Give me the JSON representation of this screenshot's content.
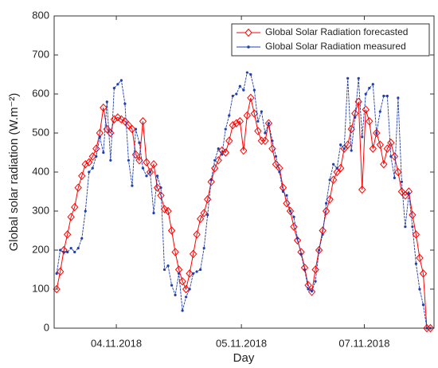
{
  "chart_data": {
    "type": "line",
    "xlabel": "Day",
    "ylabel": "Global solar radiation (W.m⁻²)",
    "x": [
      0,
      1,
      2,
      3,
      4,
      5,
      6,
      7,
      8,
      9,
      10,
      11,
      12,
      13,
      14,
      15,
      16,
      17,
      18,
      19,
      20,
      21,
      22,
      23,
      24,
      25,
      26,
      27,
      28,
      29,
      30,
      31,
      32,
      33,
      34,
      35,
      36,
      37,
      38,
      39,
      40,
      41,
      42,
      43,
      44,
      45,
      46,
      47,
      48,
      49,
      50,
      51,
      52,
      53,
      54,
      55,
      56,
      57,
      58,
      59,
      60,
      61,
      62,
      63,
      64,
      65,
      66,
      67,
      68,
      69,
      70,
      71,
      72,
      73,
      74,
      75,
      76,
      77,
      78,
      79,
      80,
      81,
      82,
      83,
      84,
      85,
      86,
      87,
      88,
      89,
      90,
      91,
      92,
      93,
      94,
      95,
      96,
      97,
      98,
      99,
      100,
      101,
      102,
      103,
      104
    ],
    "xlim": [
      -0.7,
      105
    ],
    "xticks": [
      {
        "value": 16.6,
        "label": "04.11.2018"
      },
      {
        "value": 51.4,
        "label": "05.11.2018"
      },
      {
        "value": 85.6,
        "label": "07.11.2018"
      }
    ],
    "ylim": [
      0,
      800
    ],
    "yticks": [
      0,
      100,
      200,
      300,
      400,
      500,
      600,
      700,
      800
    ],
    "grid": false,
    "legend": "upper right",
    "series": [
      {
        "name": "Global Solar Radiation forecasted",
        "color": "#ff0000",
        "marker": "diamond",
        "values": [
          100,
          145,
          200,
          240,
          285,
          310,
          360,
          390,
          420,
          425,
          440,
          460,
          500,
          565,
          510,
          500,
          535,
          540,
          535,
          530,
          520,
          510,
          445,
          430,
          530,
          425,
          400,
          420,
          360,
          340,
          305,
          300,
          250,
          195,
          150,
          120,
          100,
          140,
          190,
          240,
          280,
          295,
          330,
          375,
          410,
          430,
          455,
          450,
          480,
          520,
          525,
          530,
          455,
          545,
          590,
          550,
          505,
          480,
          480,
          525,
          460,
          420,
          410,
          360,
          320,
          300,
          260,
          225,
          195,
          155,
          110,
          93,
          150,
          200,
          250,
          300,
          330,
          380,
          400,
          410,
          460,
          470,
          510,
          550,
          580,
          355,
          560,
          530,
          460,
          500,
          470,
          420,
          460,
          475,
          440,
          400,
          350,
          340,
          350,
          290,
          240,
          180,
          140,
          0,
          0
        ]
      },
      {
        "name": "Global Solar Radiation measured",
        "color": "#1f3fb0",
        "marker": "dot",
        "values": [
          140,
          200,
          195,
          195,
          205,
          195,
          205,
          230,
          300,
          400,
          410,
          440,
          490,
          450,
          580,
          430,
          615,
          625,
          635,
          575,
          430,
          365,
          510,
          475,
          410,
          390,
          400,
          295,
          390,
          360,
          150,
          160,
          110,
          85,
          140,
          45,
          80,
          100,
          140,
          145,
          150,
          205,
          290,
          380,
          430,
          460,
          445,
          510,
          545,
          595,
          600,
          620,
          610,
          655,
          650,
          610,
          530,
          555,
          500,
          525,
          480,
          440,
          400,
          350,
          340,
          300,
          285,
          230,
          190,
          150,
          100,
          95,
          120,
          200,
          240,
          320,
          380,
          420,
          410,
          470,
          460,
          640,
          455,
          540,
          640,
          490,
          600,
          615,
          625,
          500,
          555,
          595,
          595,
          440,
          385,
          590,
          375,
          260,
          345,
          260,
          165,
          100,
          60,
          0,
          0
        ]
      }
    ]
  }
}
